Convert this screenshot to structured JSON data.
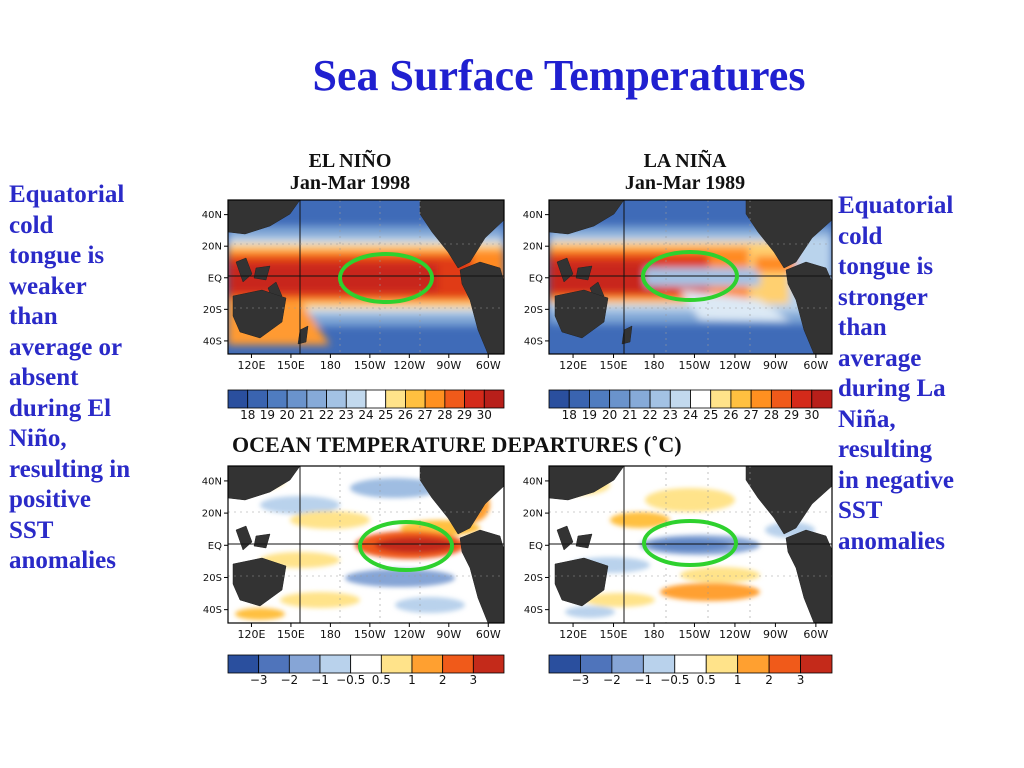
{
  "title": "Sea Surface Temperatures",
  "left_note": [
    "Equatorial",
    "cold",
    "tongue is",
    "weaker",
    "than",
    "average or",
    "absent",
    "during El",
    "Niño,",
    "resulting in",
    "positive",
    "SST",
    "anomalies"
  ],
  "right_note": [
    "Equatorial",
    "cold",
    "tongue is",
    "stronger",
    "than",
    "average",
    "during La",
    "Niña,",
    "resulting",
    "in negative",
    "SST",
    "anomalies"
  ],
  "panels": {
    "elnino": {
      "name": "EL NIÑO",
      "period": "Jan-Mar 1998"
    },
    "lanina": {
      "name": "LA NIÑA",
      "period": "Jan-Mar 1989"
    }
  },
  "departures_title": "OCEAN TEMPERATURE DEPARTURES (˚C)",
  "lat_labels": [
    "40N",
    "20N",
    "EQ",
    "20S",
    "40S"
  ],
  "lon_labels": [
    "120E",
    "150E",
    "180",
    "150W",
    "120W",
    "90W",
    "60W"
  ],
  "sst_scale": {
    "labels": [
      "18",
      "19",
      "20",
      "21",
      "22",
      "23",
      "24",
      "25",
      "26",
      "27",
      "28",
      "29",
      "30"
    ],
    "colors": [
      "#2a4f9e",
      "#3a64b0",
      "#4f7cc0",
      "#6a93cc",
      "#86aad8",
      "#a3c2e4",
      "#c2d9ee",
      "#ffffff",
      "#ffe38a",
      "#ffc040",
      "#ff9020",
      "#f05a1a",
      "#d42a1a",
      "#b81f1a"
    ]
  },
  "anomaly_scale": {
    "labels": [
      "−3",
      "−2",
      "−1",
      "−0.5",
      "0.5",
      "1",
      "2",
      "3"
    ],
    "colors": [
      "#2a4f9e",
      "#4f74bb",
      "#86a5d6",
      "#b9d2ec",
      "#ffffff",
      "#ffe38a",
      "#ffa030",
      "#f05a1a",
      "#c42a1a"
    ]
  }
}
